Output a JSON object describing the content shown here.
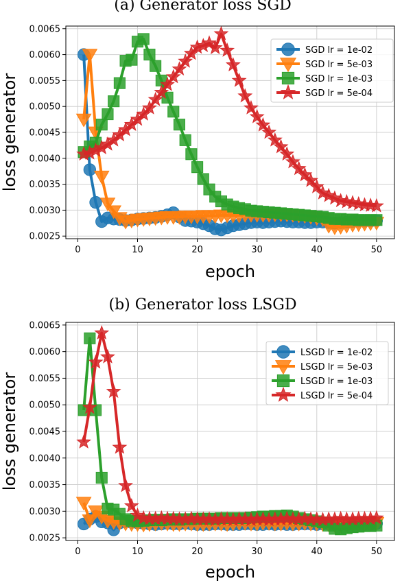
{
  "chart_data": [
    {
      "type": "line",
      "title": "(a) Generator loss SGD",
      "xlabel": "epoch",
      "ylabel": "loss generator",
      "xlim": [
        -2,
        53
      ],
      "ylim": [
        0.00245,
        0.00655
      ],
      "xticks": [
        "0",
        "10",
        "20",
        "30",
        "40",
        "50"
      ],
      "yticks": [
        "0.0025",
        "0.0030",
        "0.0035",
        "0.0040",
        "0.0045",
        "0.0050",
        "0.0055",
        "0.0060",
        "0.0065"
      ],
      "grid": true,
      "legend_position": "top-right",
      "series": [
        {
          "name": "SGD lr = 1e-02",
          "color": "#1f77b4",
          "marker": "circle",
          "values": [
            0.006,
            0.00378,
            0.00315,
            0.00278,
            0.00285,
            0.00283,
            0.00282,
            0.0028,
            0.00281,
            0.00283,
            0.00284,
            0.00285,
            0.00286,
            0.00288,
            0.00291,
            0.00295,
            0.00287,
            0.0028,
            0.00279,
            0.00277,
            0.00274,
            0.0027,
            0.00264,
            0.00262,
            0.00266,
            0.0027,
            0.00272,
            0.00274,
            0.00276,
            0.00277,
            0.00276,
            0.00277,
            0.00278,
            0.00279,
            0.00278,
            0.00277,
            0.00277,
            0.00276,
            0.00276,
            0.00277,
            0.00277,
            0.00276,
            0.00275,
            0.00276,
            0.00277,
            0.00278,
            0.00279,
            0.00279,
            0.00279,
            0.0028
          ]
        },
        {
          "name": "SGD lr = 5e-03",
          "color": "#ff7f0e",
          "marker": "triangle-down",
          "values": [
            0.00475,
            0.006,
            0.0045,
            0.00365,
            0.00313,
            0.00298,
            0.00285,
            0.00278,
            0.0028,
            0.00282,
            0.00283,
            0.00284,
            0.00285,
            0.00286,
            0.00287,
            0.00287,
            0.00287,
            0.00288,
            0.00288,
            0.00288,
            0.00289,
            0.00289,
            0.00289,
            0.0029,
            0.0029,
            0.0029,
            0.0029,
            0.00291,
            0.00291,
            0.00291,
            0.00291,
            0.00291,
            0.00292,
            0.00292,
            0.00292,
            0.00291,
            0.0029,
            0.00289,
            0.00287,
            0.00285,
            0.00283,
            0.0027,
            0.00267,
            0.00268,
            0.0027,
            0.00272,
            0.00273,
            0.00274,
            0.00275,
            0.00276
          ]
        },
        {
          "name": "SGD lr = 1e-03",
          "color": "#2ca02c",
          "marker": "square",
          "values": [
            0.00412,
            0.00423,
            0.0043,
            0.00465,
            0.00485,
            0.0051,
            0.00545,
            0.00588,
            0.0059,
            0.00625,
            0.0063,
            0.006,
            0.00578,
            0.0055,
            0.00517,
            0.0049,
            0.00465,
            0.00435,
            0.00408,
            0.00383,
            0.0036,
            0.0034,
            0.00326,
            0.00317,
            0.00311,
            0.00307,
            0.00304,
            0.00302,
            0.00299,
            0.00298,
            0.00297,
            0.00296,
            0.00295,
            0.00294,
            0.00293,
            0.00292,
            0.00291,
            0.0029,
            0.00289,
            0.00288,
            0.00287,
            0.00285,
            0.00283,
            0.00283,
            0.00282,
            0.00282,
            0.00281,
            0.00281,
            0.00281,
            0.00281
          ]
        },
        {
          "name": "SGD lr = 5e-04",
          "color": "#d62728",
          "marker": "star",
          "values": [
            0.00408,
            0.0041,
            0.00415,
            0.0042,
            0.00427,
            0.00435,
            0.00445,
            0.00455,
            0.00465,
            0.00475,
            0.00485,
            0.00497,
            0.00513,
            0.00527,
            0.00542,
            0.00557,
            0.00572,
            0.00587,
            0.00602,
            0.00614,
            0.00617,
            0.00622,
            0.00613,
            0.0064,
            0.00608,
            0.0058,
            0.0055,
            0.0052,
            0.00497,
            0.0048,
            0.00464,
            0.0045,
            0.00435,
            0.00422,
            0.00408,
            0.00393,
            0.0038,
            0.00368,
            0.00357,
            0.00345,
            0.00333,
            0.00328,
            0.00323,
            0.00318,
            0.00316,
            0.00314,
            0.00312,
            0.0031,
            0.00309,
            0.00308
          ]
        }
      ]
    },
    {
      "type": "line",
      "title": "(b) Generator loss LSGD",
      "xlabel": "epoch",
      "ylabel": "loss generator",
      "xlim": [
        -2,
        53
      ],
      "ylim": [
        0.00245,
        0.00655
      ],
      "xticks": [
        "0",
        "10",
        "20",
        "30",
        "40",
        "50"
      ],
      "yticks": [
        "0.0025",
        "0.0030",
        "0.0035",
        "0.0040",
        "0.0045",
        "0.0050",
        "0.0055",
        "0.0060",
        "0.0065"
      ],
      "grid": true,
      "legend_position": "top-right",
      "series": [
        {
          "name": "LSGD lr = 1e-02",
          "color": "#1f77b4",
          "marker": "circle",
          "values": [
            0.00276,
            0.00285,
            0.0029,
            0.0028,
            0.00278,
            0.00265,
            0.00278,
            0.0028,
            0.00279,
            0.00278,
            0.00277,
            0.00276,
            0.00275,
            0.00276,
            0.00277,
            0.00276,
            0.00276,
            0.00277,
            0.00276,
            0.00275,
            0.00275,
            0.00275,
            0.00276,
            0.00276,
            0.00275,
            0.00275,
            0.00275,
            0.00276,
            0.00276,
            0.00275,
            0.00275,
            0.00276,
            0.00275,
            0.00276,
            0.00275,
            0.00275,
            0.00276,
            0.00276,
            0.00276,
            0.00275,
            0.00276,
            0.00276,
            0.00276,
            0.00275,
            0.00275,
            0.00276,
            0.00276,
            0.00276,
            0.00276,
            0.00277
          ]
        },
        {
          "name": "LSGD lr = 5e-03",
          "color": "#ff7f0e",
          "marker": "triangle-down",
          "values": [
            0.00316,
            0.00283,
            0.003,
            0.0029,
            0.00282,
            0.0028,
            0.00278,
            0.00277,
            0.00276,
            0.00276,
            0.00275,
            0.00276,
            0.00277,
            0.00278,
            0.00277,
            0.00276,
            0.00276,
            0.00277,
            0.00277,
            0.00276,
            0.00276,
            0.00277,
            0.00277,
            0.00277,
            0.00276,
            0.00277,
            0.00278,
            0.00278,
            0.00277,
            0.00277,
            0.00278,
            0.00278,
            0.00277,
            0.00277,
            0.00278,
            0.00277,
            0.00277,
            0.00278,
            0.00277,
            0.00277,
            0.00276,
            0.00275,
            0.00274,
            0.00274,
            0.00275,
            0.00276,
            0.00276,
            0.00277,
            0.00277,
            0.00278
          ]
        },
        {
          "name": "LSGD lr = 1e-03",
          "color": "#2ca02c",
          "marker": "square",
          "values": [
            0.0049,
            0.00625,
            0.0049,
            0.00363,
            0.00305,
            0.00303,
            0.00295,
            0.00285,
            0.00282,
            0.00281,
            0.00282,
            0.00283,
            0.00284,
            0.00283,
            0.00284,
            0.00285,
            0.00284,
            0.00285,
            0.00285,
            0.00286,
            0.00286,
            0.00286,
            0.00286,
            0.00287,
            0.00287,
            0.00287,
            0.00287,
            0.00287,
            0.00288,
            0.00289,
            0.0029,
            0.0029,
            0.00291,
            0.00291,
            0.00292,
            0.0029,
            0.00287,
            0.00285,
            0.00283,
            0.00281,
            0.00279,
            0.00273,
            0.00267,
            0.00266,
            0.00268,
            0.0027,
            0.00271,
            0.00272,
            0.00272,
            0.00273
          ]
        },
        {
          "name": "LSGD lr = 5e-04",
          "color": "#d62728",
          "marker": "star",
          "values": [
            0.0043,
            0.00495,
            0.0058,
            0.00635,
            0.0059,
            0.00525,
            0.0042,
            0.00348,
            0.0031,
            0.00292,
            0.00287,
            0.00286,
            0.00286,
            0.00287,
            0.00286,
            0.00286,
            0.00285,
            0.00285,
            0.00286,
            0.00285,
            0.00285,
            0.00285,
            0.00284,
            0.00285,
            0.00285,
            0.00284,
            0.00285,
            0.00285,
            0.00284,
            0.00285,
            0.00285,
            0.00284,
            0.00285,
            0.00285,
            0.00286,
            0.00285,
            0.00285,
            0.00286,
            0.00285,
            0.00285,
            0.00284,
            0.00285,
            0.00285,
            0.00286,
            0.00285,
            0.00285,
            0.00286,
            0.00286,
            0.00286,
            0.00287
          ]
        }
      ]
    }
  ]
}
